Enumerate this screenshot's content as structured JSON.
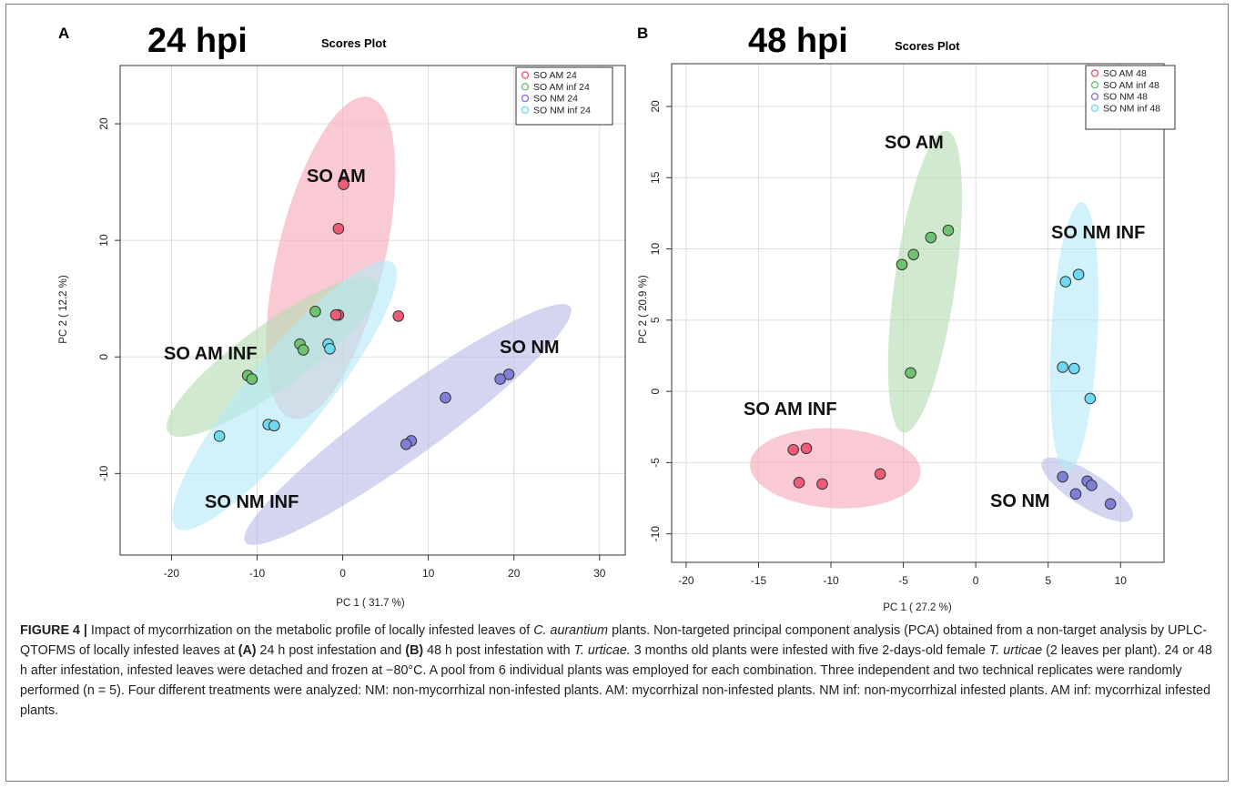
{
  "panel_a": {
    "letter": "A",
    "big_title": "24 hpi",
    "title": "Scores Plot",
    "xlabel": "PC 1 ( 31.7 %)",
    "ylabel": "PC 2 ( 12.2 %)",
    "legend": [
      "SO AM 24",
      "SO AM inf 24",
      "SO NM 24",
      "SO NM inf 24"
    ],
    "group_labels": [
      "SO AM",
      "SO AM INF",
      "SO NM",
      "SO NM INF"
    ]
  },
  "panel_b": {
    "letter": "B",
    "big_title": "48 hpi",
    "title": "Scores Plot",
    "xlabel": "PC 1 ( 27.2 %)",
    "ylabel": "PC 2 ( 20.9 %)",
    "legend": [
      "SO AM 48",
      "SO AM inf 48",
      "SO NM 48",
      "SO NM inf 48"
    ],
    "group_labels": [
      "SO AM",
      "SO NM INF",
      "SO AM INF",
      "SO NM"
    ]
  },
  "colors": {
    "am_point": "#ef5a75",
    "am_inf_point": "#6fc26f",
    "nm_point": "#7f7fd6",
    "nm_inf_point": "#6fd9f0",
    "am_ellipse": "#f6a9b8",
    "am_inf_ellipse": "#b5dcb2",
    "nm_ellipse": "#b9bde8",
    "nm_inf_ellipse": "#b4eaf7"
  },
  "chart_data": [
    {
      "type": "scatter",
      "panel": "A",
      "title": "Scores Plot",
      "xlabel": "PC 1 ( 31.7 %)",
      "ylabel": "PC 2 ( 12.2 %)",
      "xlim": [
        -26,
        33
      ],
      "ylim": [
        -17,
        25
      ],
      "xticks": [
        -20,
        -10,
        0,
        10,
        20,
        30
      ],
      "yticks": [
        -10,
        0,
        10,
        20
      ],
      "grid": true,
      "legend_position": "top-right",
      "series": [
        {
          "name": "SO AM 24",
          "color": "#ef5a75",
          "points": [
            [
              0.1,
              14.8
            ],
            [
              -0.5,
              11.0
            ],
            [
              -0.5,
              3.6
            ],
            [
              -0.8,
              3.6
            ],
            [
              6.5,
              3.5
            ]
          ],
          "ellipse": {
            "cx": -1.4,
            "cy": 8.5,
            "rx": 14.5,
            "ry": 6.0,
            "angle": 72
          }
        },
        {
          "name": "SO AM inf 24",
          "color": "#6fc26f",
          "points": [
            [
              -3.2,
              3.9
            ],
            [
              -5.0,
              1.1
            ],
            [
              -4.6,
              0.6
            ],
            [
              -11.1,
              -1.6
            ],
            [
              -10.6,
              -1.9
            ]
          ],
          "ellipse": {
            "cx": -8.2,
            "cy": 0.0,
            "rx": 13.8,
            "ry": 2.9,
            "angle": 28
          }
        },
        {
          "name": "SO NM 24",
          "color": "#7f7fd6",
          "points": [
            [
              19.4,
              -1.5
            ],
            [
              18.4,
              -1.9
            ],
            [
              12.0,
              -3.5
            ],
            [
              8.0,
              -7.2
            ],
            [
              7.4,
              -7.5
            ]
          ],
          "ellipse": {
            "cx": 7.6,
            "cy": -5.8,
            "rx": 21.5,
            "ry": 2.9,
            "angle": 28
          }
        },
        {
          "name": "SO NM inf 24",
          "color": "#6fd9f0",
          "points": [
            [
              -1.7,
              1.1
            ],
            [
              -1.5,
              0.7
            ],
            [
              -8.7,
              -5.8
            ],
            [
              -8.0,
              -5.9
            ],
            [
              -14.4,
              -6.8
            ]
          ],
          "ellipse": {
            "cx": -6.8,
            "cy": -3.3,
            "rx": 17.0,
            "ry": 3.8,
            "angle": 42
          }
        }
      ],
      "annotations": [
        "SO AM",
        "SO AM INF",
        "SO NM",
        "SO NM INF"
      ]
    },
    {
      "type": "scatter",
      "panel": "B",
      "title": "Scores Plot",
      "xlabel": "PC 1 ( 27.2 %)",
      "ylabel": "PC 2 ( 20.9 %)",
      "xlim": [
        -21,
        13
      ],
      "ylim": [
        -12,
        23
      ],
      "xticks": [
        -20,
        -15,
        -10,
        -5,
        0,
        5,
        10
      ],
      "yticks": [
        -10,
        -5,
        0,
        5,
        10,
        15,
        20
      ],
      "grid": true,
      "legend_position": "top-right",
      "series": [
        {
          "name": "SO AM 48",
          "color": "#ef5a75",
          "points": [
            [
              -12.6,
              -4.1
            ],
            [
              -11.7,
              -4.0
            ],
            [
              -12.2,
              -6.4
            ],
            [
              -10.6,
              -6.5
            ],
            [
              -6.6,
              -5.8
            ]
          ],
          "ellipse": {
            "cx": -9.7,
            "cy": -5.4,
            "rx": 5.9,
            "ry": 2.8,
            "angle": -3
          }
        },
        {
          "name": "SO AM inf 48",
          "color": "#6fc26f",
          "points": [
            [
              -1.9,
              11.3
            ],
            [
              -3.1,
              10.8
            ],
            [
              -4.3,
              9.6
            ],
            [
              -5.1,
              8.9
            ],
            [
              -4.5,
              1.3
            ]
          ],
          "ellipse": {
            "cx": -3.5,
            "cy": 7.7,
            "rx": 10.7,
            "ry": 2.1,
            "angle": 82
          }
        },
        {
          "name": "SO NM 48",
          "color": "#7f7fd6",
          "points": [
            [
              6.0,
              -6.0
            ],
            [
              7.7,
              -6.3
            ],
            [
              8.0,
              -6.6
            ],
            [
              6.9,
              -7.2
            ],
            [
              9.3,
              -7.9
            ]
          ],
          "ellipse": {
            "cx": 7.7,
            "cy": -6.9,
            "rx": 3.7,
            "ry": 1.2,
            "angle": -33
          }
        },
        {
          "name": "SO NM inf 48",
          "color": "#6fd9f0",
          "points": [
            [
              6.2,
              7.7
            ],
            [
              7.1,
              8.2
            ],
            [
              6.0,
              1.7
            ],
            [
              6.8,
              1.6
            ],
            [
              7.9,
              -0.5
            ]
          ],
          "ellipse": {
            "cx": 6.8,
            "cy": 3.8,
            "rx": 9.5,
            "ry": 1.6,
            "angle": 87
          }
        }
      ],
      "annotations": [
        "SO AM",
        "SO NM INF",
        "SO AM INF",
        "SO NM"
      ]
    }
  ],
  "caption": {
    "figure_label": "FIGURE 4 |",
    "s1": " Impact of mycorrhization on the metabolic profile of locally infested leaves of ",
    "species1": "C. aurantium",
    "s2": " plants. Non-targeted principal component analysis (PCA) obtained from a non-target analysis by UPLC-QTOFMS of locally infested leaves at ",
    "ref_a": "(A)",
    "s3": " 24 h post infestation and ",
    "ref_b": "(B)",
    "s4": " 48 h post infestation with ",
    "species2": "T. urticae.",
    "s5": " 3 months old plants were infested with five 2-days-old female ",
    "species3": "T. urticae",
    "s6": " (2 leaves per plant). 24 or 48 h after infestation, infested leaves were detached and frozen at −80°C. A pool from 6 individual plants was employed for each combination. Three independent and two technical replicates were randomly performed (n = 5). Four different treatments were analyzed: NM: non-mycorrhizal non-infested plants. AM: mycorrhizal non-infested plants. NM inf: non-mycorrhizal infested plants. AM inf: mycorrhizal infested plants."
  }
}
